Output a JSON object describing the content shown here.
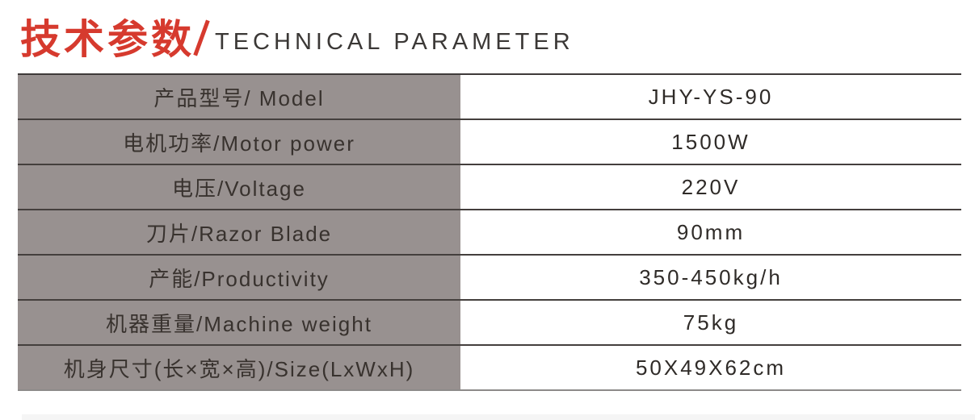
{
  "header": {
    "title_cn": "技术参数",
    "title_en": "TECHNICAL PARAMETER"
  },
  "table": {
    "rows": [
      {
        "label": "产品型号/ Model",
        "value": "JHY-YS-90"
      },
      {
        "label": "电机功率/Motor power",
        "value": "1500W"
      },
      {
        "label": "电压/Voltage",
        "value": "220V"
      },
      {
        "label": "刀片/Razor Blade",
        "value": "90mm"
      },
      {
        "label": "产能/Productivity",
        "value": "350-450kg/h"
      },
      {
        "label": "机器重量/Machine weight",
        "value": "75kg"
      },
      {
        "label": "机身尺寸(长×宽×高)/Size(LxWxH)",
        "value": "50X49X62cm"
      }
    ]
  },
  "colors": {
    "accent_red": "#d63a2e",
    "label_column_bg": "#989190",
    "separator_dark": "#443f3d",
    "separator_light": "#8d8a89",
    "title_text": "#3b3836",
    "cell_text": "#2f2b28",
    "bottom_strip": "#f5f5f5"
  }
}
